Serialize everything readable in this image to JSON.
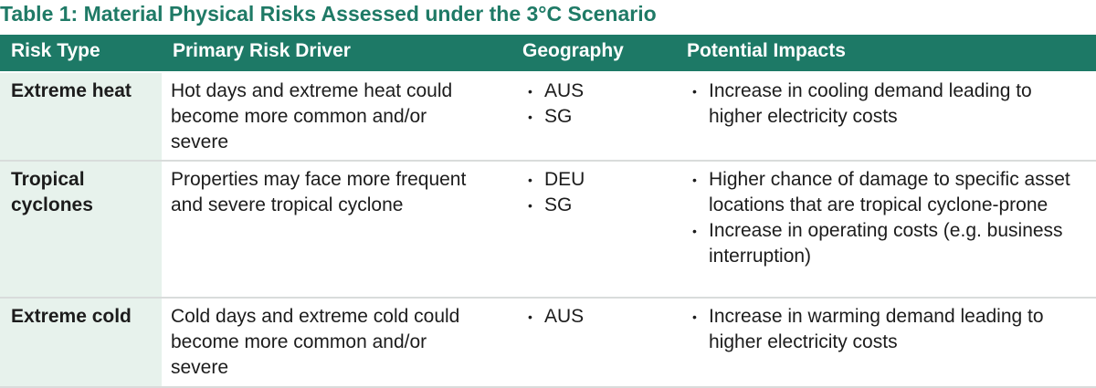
{
  "title": "Table 1: Material Physical Risks Assessed under the 3°C Scenario",
  "table": {
    "header": [
      "Risk Type",
      "Primary Risk Driver",
      "Geography",
      "Potential Impacts"
    ],
    "rows": [
      [
        "Extreme heat",
        "Hot days and extreme heat could become more common and/or severe",
        [
          "AUS",
          "SG"
        ],
        [
          "Increase in cooling demand leading to higher electricity costs"
        ]
      ],
      [
        "Tropical cyclones",
        "Properties may face more frequent and severe tropical cyclone",
        [
          "DEU",
          "SG"
        ],
        [
          "Higher chance of damage to specific asset locations that are tropical cyclone-prone",
          "Increase in operating costs (e.g. business interruption)"
        ]
      ],
      [
        "Extreme cold",
        "Cold days and extreme cold could become more common and/or severe",
        [
          "AUS"
        ],
        [
          "Increase in warming demand leading to higher electricity costs"
        ]
      ]
    ]
  }
}
